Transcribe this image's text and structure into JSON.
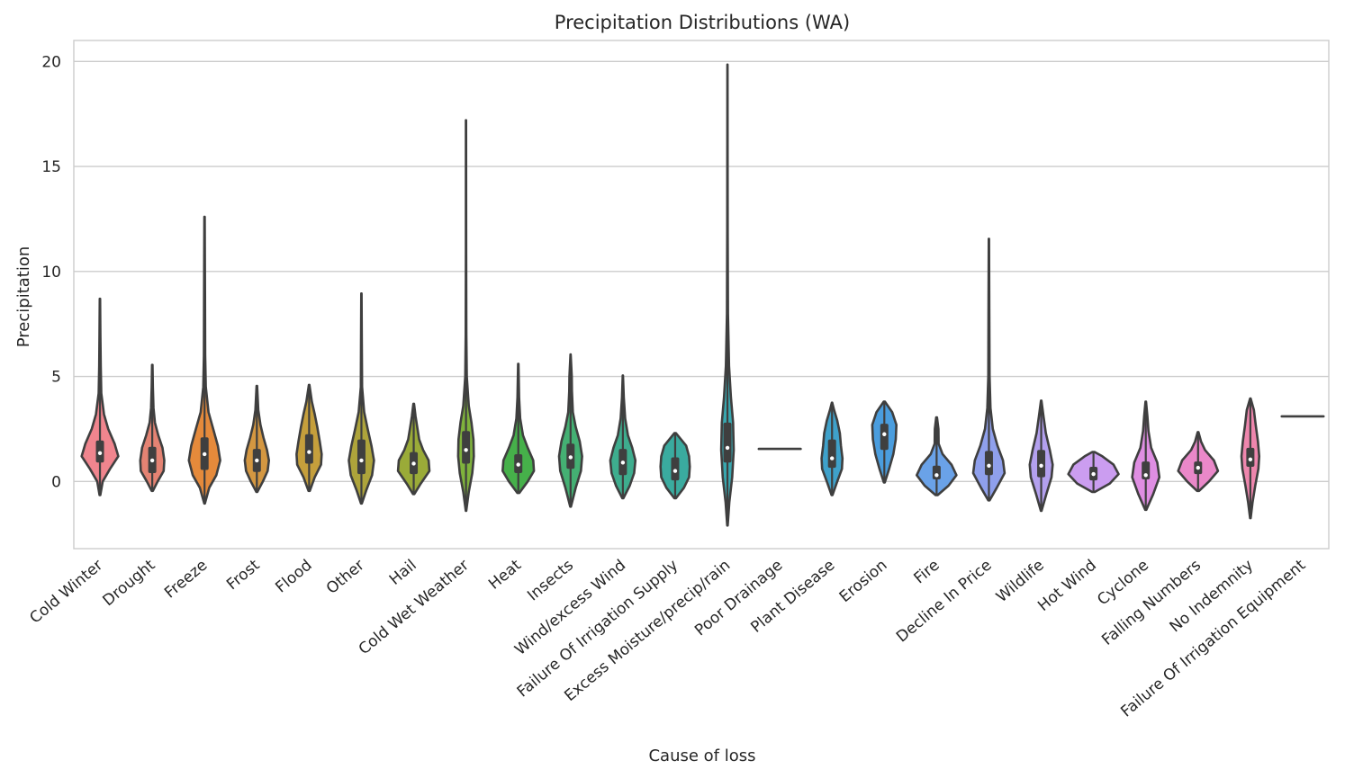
{
  "chart_data": {
    "type": "violin",
    "title": "Precipitation Distributions (WA)",
    "xlabel": "Cause of loss",
    "ylabel": "Precipitation",
    "ylim": [
      -3.2,
      21
    ],
    "yticks": [
      0,
      5,
      10,
      15,
      20
    ],
    "grid": "horizontal",
    "categories": [
      {
        "name": "Cold Winter",
        "color": "#f0858e",
        "min": -0.65,
        "max": 8.7,
        "q1": 0.9,
        "median": 1.35,
        "q3": 1.95,
        "width": 0.35,
        "shape": [
          [
            -0.65,
            0.02
          ],
          [
            0,
            0.15
          ],
          [
            0.6,
            0.55
          ],
          [
            1.2,
            1.0
          ],
          [
            1.8,
            0.8
          ],
          [
            2.5,
            0.45
          ],
          [
            3.2,
            0.22
          ],
          [
            4.2,
            0.07
          ],
          [
            5.5,
            0.04
          ],
          [
            7,
            0.025
          ],
          [
            8.7,
            0.01
          ]
        ]
      },
      {
        "name": "Drought",
        "color": "#e48373",
        "min": -0.45,
        "max": 5.55,
        "q1": 0.4,
        "median": 1.0,
        "q3": 1.65,
        "width": 0.23,
        "shape": [
          [
            -0.45,
            0.05
          ],
          [
            0,
            0.45
          ],
          [
            0.5,
            0.95
          ],
          [
            1.0,
            1.0
          ],
          [
            1.6,
            0.85
          ],
          [
            2.2,
            0.5
          ],
          [
            2.8,
            0.22
          ],
          [
            3.5,
            0.1
          ],
          [
            4.5,
            0.05
          ],
          [
            5.55,
            0.02
          ]
        ]
      },
      {
        "name": "Freeze",
        "color": "#e58a3b",
        "min": -1.05,
        "max": 12.6,
        "q1": 0.55,
        "median": 1.3,
        "q3": 2.1,
        "width": 0.3,
        "shape": [
          [
            -1.05,
            0.02
          ],
          [
            -0.3,
            0.3
          ],
          [
            0.3,
            0.75
          ],
          [
            1.0,
            1.0
          ],
          [
            1.7,
            0.85
          ],
          [
            2.5,
            0.55
          ],
          [
            3.3,
            0.25
          ],
          [
            4.5,
            0.08
          ],
          [
            6,
            0.04
          ],
          [
            9,
            0.03
          ],
          [
            12.6,
            0.01
          ]
        ]
      },
      {
        "name": "Frost",
        "color": "#d49741",
        "min": -0.5,
        "max": 4.55,
        "q1": 0.45,
        "median": 1.0,
        "q3": 1.55,
        "width": 0.23,
        "shape": [
          [
            -0.5,
            0.04
          ],
          [
            0,
            0.5
          ],
          [
            0.5,
            0.9
          ],
          [
            1.0,
            1.0
          ],
          [
            1.5,
            0.85
          ],
          [
            2.1,
            0.55
          ],
          [
            2.7,
            0.3
          ],
          [
            3.4,
            0.12
          ],
          [
            4.55,
            0.02
          ]
        ]
      },
      {
        "name": "Flood",
        "color": "#c59f3c",
        "min": -0.45,
        "max": 4.6,
        "q1": 0.85,
        "median": 1.4,
        "q3": 2.25,
        "width": 0.24,
        "shape": [
          [
            -0.45,
            0.05
          ],
          [
            0.2,
            0.45
          ],
          [
            0.8,
            0.95
          ],
          [
            1.3,
            1.0
          ],
          [
            1.9,
            0.85
          ],
          [
            2.6,
            0.65
          ],
          [
            3.2,
            0.45
          ],
          [
            3.8,
            0.22
          ],
          [
            4.6,
            0.02
          ]
        ]
      },
      {
        "name": "Other",
        "color": "#aea43b",
        "min": -1.05,
        "max": 8.95,
        "q1": 0.35,
        "median": 1.0,
        "q3": 2.0,
        "width": 0.24,
        "shape": [
          [
            -1.05,
            0.03
          ],
          [
            -0.4,
            0.4
          ],
          [
            0.3,
            0.85
          ],
          [
            1.0,
            1.0
          ],
          [
            1.7,
            0.8
          ],
          [
            2.5,
            0.5
          ],
          [
            3.3,
            0.22
          ],
          [
            4.5,
            0.05
          ],
          [
            6.5,
            0.03
          ],
          [
            8.95,
            0.01
          ]
        ]
      },
      {
        "name": "Hail",
        "color": "#9aab38",
        "min": -0.6,
        "max": 3.7,
        "q1": 0.35,
        "median": 0.85,
        "q3": 1.4,
        "width": 0.3,
        "shape": [
          [
            -0.6,
            0.04
          ],
          [
            -0.1,
            0.45
          ],
          [
            0.5,
            1.0
          ],
          [
            1.0,
            0.95
          ],
          [
            1.5,
            0.6
          ],
          [
            2.0,
            0.35
          ],
          [
            2.6,
            0.22
          ],
          [
            3.1,
            0.12
          ],
          [
            3.7,
            0.02
          ]
        ]
      },
      {
        "name": "Cold Wet Weather",
        "color": "#7fb23c",
        "min": -1.4,
        "max": 17.2,
        "q1": 0.85,
        "median": 1.5,
        "q3": 2.4,
        "width": 0.15,
        "shape": [
          [
            -1.4,
            0.03
          ],
          [
            -0.5,
            0.35
          ],
          [
            0.4,
            0.8
          ],
          [
            1.2,
            1.0
          ],
          [
            2.0,
            0.95
          ],
          [
            2.8,
            0.7
          ],
          [
            3.6,
            0.35
          ],
          [
            5,
            0.1
          ],
          [
            7,
            0.04
          ],
          [
            11,
            0.02
          ],
          [
            17.2,
            0.01
          ]
        ]
      },
      {
        "name": "Heat",
        "color": "#46b04a",
        "min": -0.55,
        "max": 5.6,
        "q1": 0.4,
        "median": 0.8,
        "q3": 1.3,
        "width": 0.3,
        "shape": [
          [
            -0.55,
            0.06
          ],
          [
            0,
            0.6
          ],
          [
            0.5,
            1.0
          ],
          [
            1.0,
            0.95
          ],
          [
            1.6,
            0.6
          ],
          [
            2.2,
            0.3
          ],
          [
            3,
            0.12
          ],
          [
            4,
            0.05
          ],
          [
            5.6,
            0.01
          ]
        ]
      },
      {
        "name": "Insects",
        "color": "#44b073",
        "min": -1.2,
        "max": 6.05,
        "q1": 0.6,
        "median": 1.15,
        "q3": 1.8,
        "width": 0.22,
        "shape": [
          [
            -1.2,
            0.03
          ],
          [
            -0.3,
            0.45
          ],
          [
            0.5,
            0.9
          ],
          [
            1.2,
            1.0
          ],
          [
            1.9,
            0.8
          ],
          [
            2.6,
            0.45
          ],
          [
            3.3,
            0.2
          ],
          [
            4.3,
            0.12
          ],
          [
            5,
            0.1
          ],
          [
            6.05,
            0.01
          ]
        ]
      },
      {
        "name": "Wind/excess Wind",
        "color": "#3ead8e",
        "min": -0.8,
        "max": 5.05,
        "q1": 0.3,
        "median": 0.9,
        "q3": 1.55,
        "width": 0.24,
        "shape": [
          [
            -0.8,
            0.04
          ],
          [
            -0.2,
            0.55
          ],
          [
            0.4,
            0.9
          ],
          [
            1.0,
            1.0
          ],
          [
            1.6,
            0.75
          ],
          [
            2.2,
            0.4
          ],
          [
            3,
            0.18
          ],
          [
            4,
            0.07
          ],
          [
            5.05,
            0.01
          ]
        ]
      },
      {
        "name": "Failure Of Irrigation Supply",
        "color": "#3aab9f",
        "min": -0.8,
        "max": 2.3,
        "q1": 0.05,
        "median": 0.5,
        "q3": 1.15,
        "width": 0.28,
        "shape": [
          [
            -0.8,
            0.05
          ],
          [
            -0.3,
            0.6
          ],
          [
            0.2,
            0.95
          ],
          [
            0.7,
            1.0
          ],
          [
            1.2,
            0.95
          ],
          [
            1.7,
            0.75
          ],
          [
            2.3,
            0.05
          ]
        ]
      },
      {
        "name": "Excess Moisture/precip/rain",
        "color": "#39a8b0",
        "min": -2.1,
        "max": 19.85,
        "q1": 0.9,
        "median": 1.6,
        "q3": 2.8,
        "width": 0.12,
        "shape": [
          [
            -2.1,
            0.03
          ],
          [
            -1,
            0.3
          ],
          [
            0.2,
            0.75
          ],
          [
            1.5,
            1.0
          ],
          [
            2.8,
            0.9
          ],
          [
            4,
            0.55
          ],
          [
            5.5,
            0.25
          ],
          [
            8,
            0.08
          ],
          [
            12,
            0.04
          ],
          [
            19.85,
            0.01
          ]
        ]
      },
      {
        "name": "Poor Drainage",
        "color": "#3aa6c0",
        "min": 1.55,
        "max": 1.55,
        "q1": 1.55,
        "median": 1.55,
        "q3": 1.55,
        "width": 0.4,
        "shape": []
      },
      {
        "name": "Plant Disease",
        "color": "#3fa1ca",
        "min": -0.65,
        "max": 3.75,
        "q1": 0.65,
        "median": 1.1,
        "q3": 2.0,
        "width": 0.2,
        "shape": [
          [
            -0.65,
            0.04
          ],
          [
            0,
            0.5
          ],
          [
            0.6,
            0.95
          ],
          [
            1.1,
            1.0
          ],
          [
            1.7,
            0.85
          ],
          [
            2.3,
            0.75
          ],
          [
            2.9,
            0.5
          ],
          [
            3.4,
            0.2
          ],
          [
            3.75,
            0.02
          ]
        ]
      },
      {
        "name": "Erosion",
        "color": "#4a9dde",
        "min": -0.05,
        "max": 3.8,
        "q1": 1.5,
        "median": 2.25,
        "q3": 2.75,
        "width": 0.23,
        "shape": [
          [
            -0.05,
            0.04
          ],
          [
            0.6,
            0.4
          ],
          [
            1.3,
            0.75
          ],
          [
            2.0,
            0.95
          ],
          [
            2.7,
            1.0
          ],
          [
            3.3,
            0.65
          ],
          [
            3.8,
            0.05
          ]
        ]
      },
      {
        "name": "Fire",
        "color": "#6aa2e8",
        "min": -0.65,
        "max": 3.05,
        "q1": 0.1,
        "median": 0.3,
        "q3": 0.75,
        "width": 0.38,
        "shape": [
          [
            -0.65,
            0.05
          ],
          [
            -0.2,
            0.6
          ],
          [
            0.3,
            1.0
          ],
          [
            0.8,
            0.75
          ],
          [
            1.3,
            0.3
          ],
          [
            1.8,
            0.1
          ],
          [
            2.5,
            0.09
          ],
          [
            3.05,
            0.02
          ]
        ]
      },
      {
        "name": "Decline In Price",
        "color": "#8fa0ec",
        "min": -0.9,
        "max": 11.55,
        "q1": 0.3,
        "median": 0.75,
        "q3": 1.45,
        "width": 0.3,
        "shape": [
          [
            -0.9,
            0.04
          ],
          [
            -0.3,
            0.5
          ],
          [
            0.4,
            1.0
          ],
          [
            1.0,
            0.9
          ],
          [
            1.7,
            0.55
          ],
          [
            2.5,
            0.25
          ],
          [
            3.5,
            0.1
          ],
          [
            5,
            0.04
          ],
          [
            8,
            0.025
          ],
          [
            11.55,
            0.01
          ]
        ]
      },
      {
        "name": "Wildlife",
        "color": "#b3a0ee",
        "min": -1.4,
        "max": 3.85,
        "q1": 0.2,
        "median": 0.75,
        "q3": 1.5,
        "width": 0.22,
        "shape": [
          [
            -1.4,
            0.03
          ],
          [
            -0.6,
            0.45
          ],
          [
            0.2,
            0.9
          ],
          [
            0.8,
            1.0
          ],
          [
            1.5,
            0.75
          ],
          [
            2.3,
            0.4
          ],
          [
            3.1,
            0.2
          ],
          [
            3.85,
            0.02
          ]
        ]
      },
      {
        "name": "Hot Wind",
        "color": "#cb9df0",
        "min": -0.5,
        "max": 1.4,
        "q1": 0.05,
        "median": 0.35,
        "q3": 0.7,
        "width": 0.48,
        "shape": [
          [
            -0.5,
            0.05
          ],
          [
            -0.1,
            0.65
          ],
          [
            0.35,
            1.0
          ],
          [
            0.8,
            0.8
          ],
          [
            1.2,
            0.35
          ],
          [
            1.4,
            0.05
          ]
        ]
      },
      {
        "name": "Cyclone",
        "color": "#df8ee2",
        "min": -1.35,
        "max": 3.8,
        "q1": 0.1,
        "median": 0.3,
        "q3": 0.95,
        "width": 0.26,
        "shape": [
          [
            -1.35,
            0.04
          ],
          [
            -0.6,
            0.55
          ],
          [
            0.2,
            1.0
          ],
          [
            0.9,
            0.85
          ],
          [
            1.6,
            0.4
          ],
          [
            2.4,
            0.2
          ],
          [
            3.1,
            0.12
          ],
          [
            3.8,
            0.02
          ]
        ]
      },
      {
        "name": "Falling Numbers",
        "color": "#ea88c9",
        "min": -0.45,
        "max": 2.35,
        "q1": 0.35,
        "median": 0.65,
        "q3": 0.95,
        "width": 0.38,
        "shape": [
          [
            -0.45,
            0.05
          ],
          [
            0,
            0.55
          ],
          [
            0.5,
            1.0
          ],
          [
            1.0,
            0.8
          ],
          [
            1.5,
            0.35
          ],
          [
            1.9,
            0.15
          ],
          [
            2.35,
            0.02
          ]
        ]
      },
      {
        "name": "No Indemnity",
        "color": "#ee86ad",
        "min": -1.75,
        "max": 3.95,
        "q1": 0.7,
        "median": 1.05,
        "q3": 1.6,
        "width": 0.17,
        "shape": [
          [
            -1.75,
            0.03
          ],
          [
            -1,
            0.25
          ],
          [
            -0.2,
            0.55
          ],
          [
            0.6,
            0.9
          ],
          [
            1.2,
            1.0
          ],
          [
            1.9,
            0.85
          ],
          [
            2.7,
            0.6
          ],
          [
            3.4,
            0.4
          ],
          [
            3.95,
            0.03
          ]
        ]
      },
      {
        "name": "Failure Of Irrigation Equipment",
        "color": "#f0859a",
        "min": 3.1,
        "max": 3.1,
        "q1": 3.1,
        "median": 3.1,
        "q3": 3.1,
        "width": 0.4,
        "shape": []
      }
    ]
  }
}
